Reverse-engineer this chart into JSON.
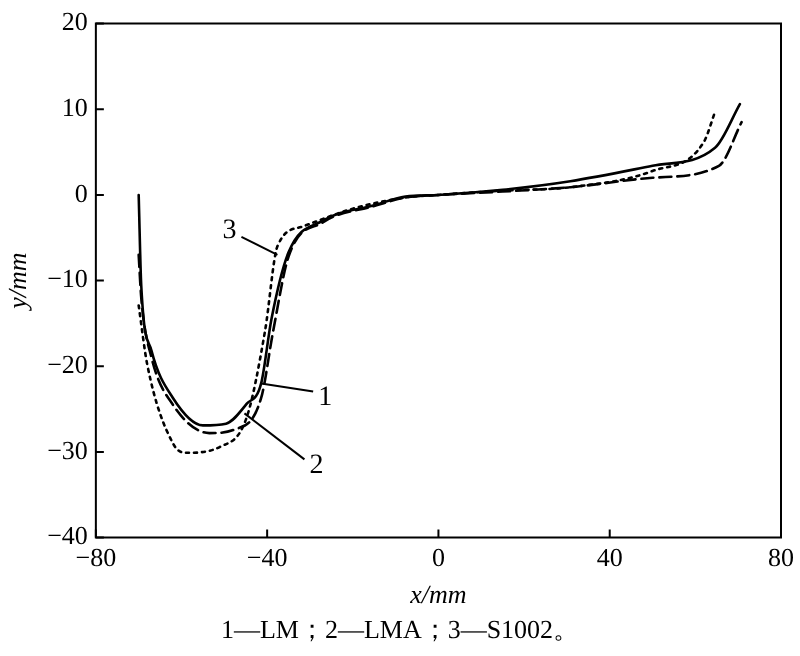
{
  "chart_data": {
    "type": "line",
    "xlabel": "x/mm",
    "ylabel": "y/mm",
    "xlim": [
      -80,
      80
    ],
    "xticks": [
      -80,
      -40,
      0,
      40,
      80
    ],
    "ylim": [
      -40,
      20
    ],
    "yticks": [
      -40,
      -30,
      -20,
      -10,
      0,
      10,
      20
    ],
    "grid": false,
    "legend": false,
    "marker": "none",
    "annotations": [
      {
        "text": "1",
        "x": -41.4,
        "y": -22
      },
      {
        "text": "2",
        "x": -45.3,
        "y": -25.5
      },
      {
        "text": "3",
        "x": -37.6,
        "y": -7
      },
      "1—LM；2—LMA；3—S1002。"
    ],
    "series": [
      {
        "color": "#000000",
        "line_style": "solid",
        "x": [
          -70,
          -69.4,
          -67,
          -62,
          -55,
          -49.6,
          -44.8,
          -41.4,
          -39,
          -35,
          -27,
          -15,
          -7.7,
          0,
          15,
          30.8,
          50,
          64.6,
          70.4
        ],
        "values": [
          0,
          -10.6,
          -18.2,
          -23.7,
          -26.9,
          -26.7,
          -24.4,
          -22,
          -14.5,
          -6.7,
          -3,
          -1.2,
          -0.2,
          0,
          0.6,
          1.6,
          3.4,
          5.5,
          10.6
        ]
      },
      {
        "color": "#000000",
        "line_style": "dashed",
        "x": [
          -70,
          -69.4,
          -67,
          -62,
          -53.5,
          -47.7,
          -41.4,
          -38.6,
          -35,
          -27,
          -15,
          -7.7,
          0,
          15,
          30.8,
          50,
          65.5,
          70.8
        ],
        "values": [
          -7,
          -12,
          -19,
          -24.5,
          -27.8,
          -27.4,
          -23.7,
          -15.9,
          -7.2,
          -3.2,
          -1.3,
          -0.3,
          0,
          0.4,
          0.9,
          2,
          3.4,
          8.5
        ]
      },
      {
        "color": "#000000",
        "line_style": "dotted",
        "x": [
          -70,
          -68,
          -62,
          -59,
          -51,
          -44.8,
          -40.5,
          -37.6,
          -31.8,
          -20,
          -7.7,
          0,
          15,
          30.8,
          50,
          62,
          64.6
        ],
        "values": [
          -12.9,
          -19.8,
          -29,
          -30.1,
          -29.4,
          -26,
          -15.9,
          -6,
          -3.7,
          -1.6,
          -0.3,
          0,
          0.5,
          0.9,
          2.8,
          6.2,
          9.7
        ]
      }
    ]
  }
}
